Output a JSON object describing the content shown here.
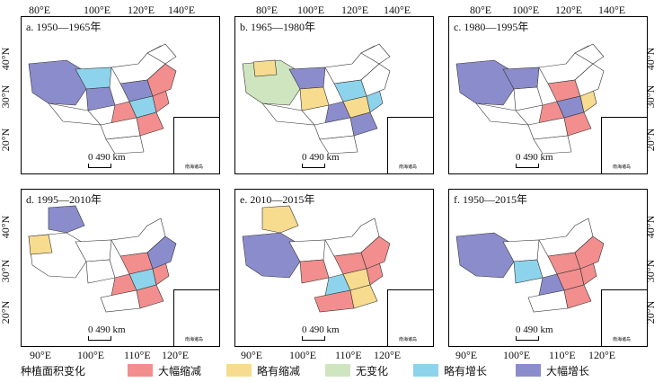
{
  "panels": [
    {
      "title": "a. 1950—1965年"
    },
    {
      "title": "b. 1965—1980年"
    },
    {
      "title": "c. 1980—1995年"
    },
    {
      "title": "d. 1995—2010年"
    },
    {
      "title": "e. 2010—2015年"
    },
    {
      "title": "f. 1950—2015年"
    }
  ],
  "scale_label": "0  490 km",
  "inset_label": "南海诸岛",
  "top_lon_labels": [
    "80°E",
    "100°E",
    "120°E",
    "140°E"
  ],
  "bottom_lon_labels": [
    "90°E",
    "100°E",
    "110°E",
    "120°E"
  ],
  "lat_labels": [
    "40°N",
    "30°N",
    "20°N"
  ],
  "legend": {
    "title": "种植面积变化",
    "items": [
      {
        "label": "大幅缩减",
        "color": "#f28e8e"
      },
      {
        "label": "略有缩减",
        "color": "#f7db8f"
      },
      {
        "label": "无变化",
        "color": "#cfe5bf"
      },
      {
        "label": "略有增长",
        "color": "#8dd3eb"
      },
      {
        "label": "大幅增长",
        "color": "#8b8ccc"
      }
    ]
  }
}
